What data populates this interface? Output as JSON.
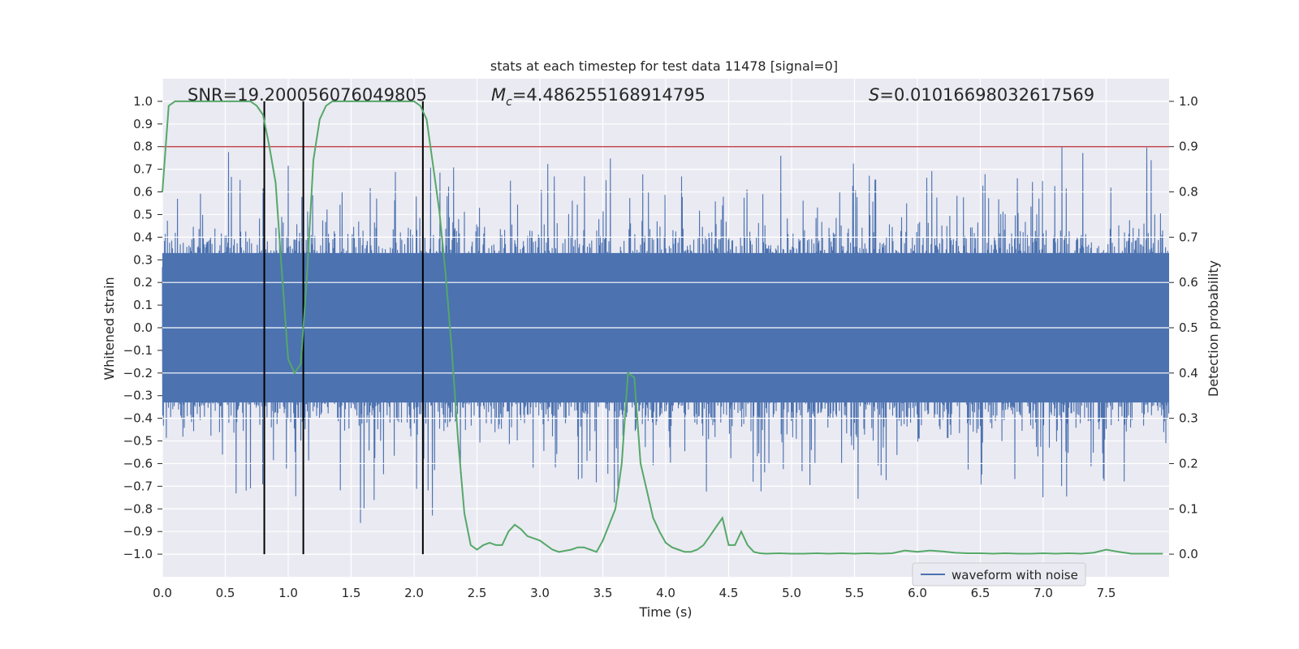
{
  "chart_data": {
    "type": "line",
    "title": "stats at each timestep for test data 11478 [signal=0]",
    "xlabel": "Time (s)",
    "ylabel": "Whitened strain",
    "y2label": "Detection probability",
    "xlim": [
      0.0,
      8.0
    ],
    "ylim": [
      -1.1,
      1.1
    ],
    "y2lim": [
      -0.05,
      1.05
    ],
    "x_ticks": [
      0.0,
      0.5,
      1.0,
      1.5,
      2.0,
      2.5,
      3.0,
      3.5,
      4.0,
      4.5,
      5.0,
      5.5,
      6.0,
      6.5,
      7.0,
      7.5
    ],
    "x_tick_labels": [
      "0.0",
      "0.5",
      "1.0",
      "1.5",
      "2.0",
      "2.5",
      "3.0",
      "3.5",
      "4.0",
      "4.5",
      "5.0",
      "5.5",
      "6.0",
      "6.5",
      "7.0",
      "7.5"
    ],
    "y_ticks": [
      1.0,
      0.9,
      0.8,
      0.7,
      0.6,
      0.5,
      0.4,
      0.3,
      0.2,
      0.1,
      0.0,
      -0.1,
      -0.2,
      -0.3,
      -0.4,
      -0.5,
      -0.6,
      -0.7,
      -0.8,
      -0.9,
      -1.0
    ],
    "y_tick_labels": [
      "1.0",
      "0.9",
      "0.8",
      "0.7",
      "0.6",
      "0.5",
      "0.4",
      "0.3",
      "0.2",
      "0.1",
      "0.0",
      "−0.1",
      "−0.2",
      "−0.3",
      "−0.4",
      "−0.5",
      "−0.6",
      "−0.7",
      "−0.8",
      "−0.9",
      "−1.0"
    ],
    "y2_ticks": [
      1.0,
      0.9,
      0.8,
      0.7,
      0.6,
      0.5,
      0.4,
      0.3,
      0.2,
      0.1,
      0.0
    ],
    "y2_tick_labels": [
      "1.0",
      "0.9",
      "0.8",
      "0.7",
      "0.6",
      "0.5",
      "0.4",
      "0.3",
      "0.2",
      "0.1",
      "0.0"
    ],
    "annotations": {
      "snr": "SNR=19.200056076049805",
      "mc_prefix": "M",
      "mc_sub": "c",
      "mc_value": "=4.486255168914795",
      "s_prefix": "S",
      "s_value": "=0.010166980326175 69"
    },
    "threshold": {
      "y2": 0.9,
      "color": "#c44e52"
    },
    "vertical_lines_x": [
      0.81,
      1.12,
      2.07
    ],
    "waveform": {
      "name": "waveform with noise",
      "color": "#4c72b0",
      "duration": 8.0,
      "samples": 1400,
      "envelope_typical": 0.42,
      "seed": 11478
    },
    "detection_probability": {
      "color": "#55a868",
      "x": [
        0.0,
        0.05,
        0.1,
        0.15,
        0.2,
        0.3,
        0.4,
        0.5,
        0.6,
        0.7,
        0.75,
        0.8,
        0.85,
        0.9,
        0.95,
        1.0,
        1.05,
        1.1,
        1.15,
        1.2,
        1.25,
        1.3,
        1.35,
        1.4,
        1.5,
        1.6,
        1.7,
        1.8,
        1.9,
        2.0,
        2.05,
        2.1,
        2.15,
        2.2,
        2.25,
        2.3,
        2.35,
        2.4,
        2.45,
        2.5,
        2.55,
        2.6,
        2.65,
        2.7,
        2.75,
        2.8,
        2.85,
        2.9,
        3.0,
        3.1,
        3.15,
        3.25,
        3.3,
        3.35,
        3.4,
        3.45,
        3.5,
        3.55,
        3.6,
        3.65,
        3.7,
        3.75,
        3.8,
        3.85,
        3.9,
        3.95,
        4.0,
        4.05,
        4.1,
        4.15,
        4.2,
        4.25,
        4.3,
        4.35,
        4.4,
        4.45,
        4.5,
        4.55,
        4.6,
        4.65,
        4.7,
        4.75,
        4.8,
        4.9,
        5.0,
        5.1,
        5.2,
        5.3,
        5.4,
        5.5,
        5.6,
        5.7,
        5.8,
        5.9,
        6.0,
        6.1,
        6.2,
        6.3,
        6.4,
        6.5,
        6.6,
        6.7,
        6.8,
        6.9,
        7.0,
        7.1,
        7.2,
        7.3,
        7.4,
        7.5,
        7.6,
        7.7,
        7.8,
        7.9,
        7.95
      ],
      "y": [
        0.8,
        0.99,
        1.0,
        1.0,
        1.0,
        1.0,
        1.0,
        1.0,
        1.0,
        1.0,
        0.99,
        0.97,
        0.9,
        0.82,
        0.62,
        0.43,
        0.4,
        0.42,
        0.62,
        0.87,
        0.96,
        0.99,
        1.0,
        1.0,
        1.0,
        1.0,
        1.0,
        1.0,
        1.0,
        1.0,
        0.99,
        0.96,
        0.86,
        0.76,
        0.62,
        0.45,
        0.25,
        0.09,
        0.02,
        0.01,
        0.02,
        0.025,
        0.02,
        0.02,
        0.05,
        0.065,
        0.055,
        0.04,
        0.03,
        0.01,
        0.005,
        0.01,
        0.015,
        0.015,
        0.01,
        0.005,
        0.03,
        0.065,
        0.1,
        0.2,
        0.4,
        0.39,
        0.2,
        0.14,
        0.08,
        0.05,
        0.025,
        0.015,
        0.01,
        0.005,
        0.005,
        0.01,
        0.02,
        0.04,
        0.06,
        0.08,
        0.02,
        0.02,
        0.05,
        0.02,
        0.005,
        0.002,
        0.001,
        0.002,
        0.001,
        0.001,
        0.002,
        0.001,
        0.002,
        0.001,
        0.002,
        0.001,
        0.002,
        0.008,
        0.005,
        0.008,
        0.006,
        0.003,
        0.002,
        0.002,
        0.001,
        0.002,
        0.001,
        0.001,
        0.002,
        0.001,
        0.002,
        0.001,
        0.003,
        0.01,
        0.005,
        0.001,
        0.001,
        0.001,
        0.001
      ]
    },
    "legend": {
      "label": "waveform with noise",
      "location": "lower-right"
    }
  }
}
